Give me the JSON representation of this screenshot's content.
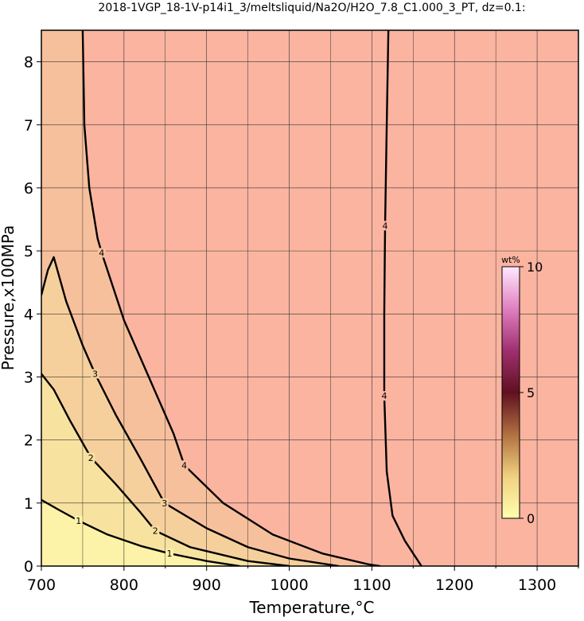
{
  "chart_data": {
    "type": "contour",
    "title": "2018-1VGP_18-1V-p14i1_3/meltsliquid/Na2O/H2O_7.8_C1.000_3_PT, dz=0.1:",
    "x_label": "Temperature,°C",
    "y_label": "Pressure,x100MPa",
    "xlim": [
      700,
      1350
    ],
    "ylim": [
      0,
      8.5
    ],
    "xticks": [
      700,
      800,
      900,
      1000,
      1100,
      1200,
      1300
    ],
    "xminorticks": [
      750,
      850,
      950,
      1050,
      1150,
      1250,
      1350
    ],
    "yticks": [
      0,
      1,
      2,
      3,
      4,
      5,
      6,
      7,
      8
    ],
    "grid": true,
    "background_color": "#fab4a0",
    "colorbar": {
      "label": "wt%",
      "lim": [
        0,
        10
      ],
      "ticks": [
        0,
        5,
        10
      ],
      "colors": [
        "#ffffb0",
        "#f0d080",
        "#b07040",
        "#601020",
        "#a03070",
        "#e080c0",
        "#ffe8ff"
      ]
    },
    "contours": [
      {
        "level": 4,
        "color": "#f7c09c",
        "x": [
          750,
          752,
          758,
          768,
          773,
          800,
          830,
          860,
          873,
          920,
          980,
          1040,
          1095,
          1110
        ],
        "y": [
          8.5,
          7,
          6,
          5.2,
          4.97,
          3.9,
          3.0,
          2.1,
          1.6,
          1.0,
          0.5,
          0.2,
          0.03,
          0
        ],
        "label_at": [
          4,
          8
        ]
      },
      {
        "level": 3,
        "color": "#f6d09c",
        "x": [
          700,
          708,
          715,
          730,
          750,
          765,
          790,
          820,
          849,
          900,
          950,
          1000,
          1060
        ],
        "y": [
          4.3,
          4.7,
          4.9,
          4.2,
          3.5,
          3.05,
          2.4,
          1.7,
          1.0,
          0.6,
          0.3,
          0.12,
          0
        ],
        "label_at": [
          5,
          8
        ]
      },
      {
        "level": 2,
        "color": "#f8e2a0",
        "x": [
          700,
          715,
          735,
          760,
          790,
          820,
          838,
          880,
          950,
          1000
        ],
        "y": [
          3.05,
          2.8,
          2.3,
          1.72,
          1.3,
          0.85,
          0.56,
          0.3,
          0.08,
          0
        ],
        "label_at": [
          3,
          6
        ]
      },
      {
        "level": 1,
        "color": "#fcf2a8",
        "x": [
          700,
          720,
          745,
          780,
          820,
          855,
          900,
          940
        ],
        "y": [
          1.05,
          0.9,
          0.72,
          0.5,
          0.32,
          0.2,
          0.08,
          0
        ],
        "label_at": [
          2,
          5
        ]
      },
      {
        "level": 4,
        "color": null,
        "x": [
          1120,
          1118,
          1116,
          1115,
          1115,
          1118,
          1125,
          1140,
          1160
        ],
        "y": [
          8.5,
          7,
          5.4,
          4,
          2.7,
          1.5,
          0.8,
          0.4,
          0
        ],
        "label_at": [
          2,
          4
        ]
      }
    ]
  }
}
